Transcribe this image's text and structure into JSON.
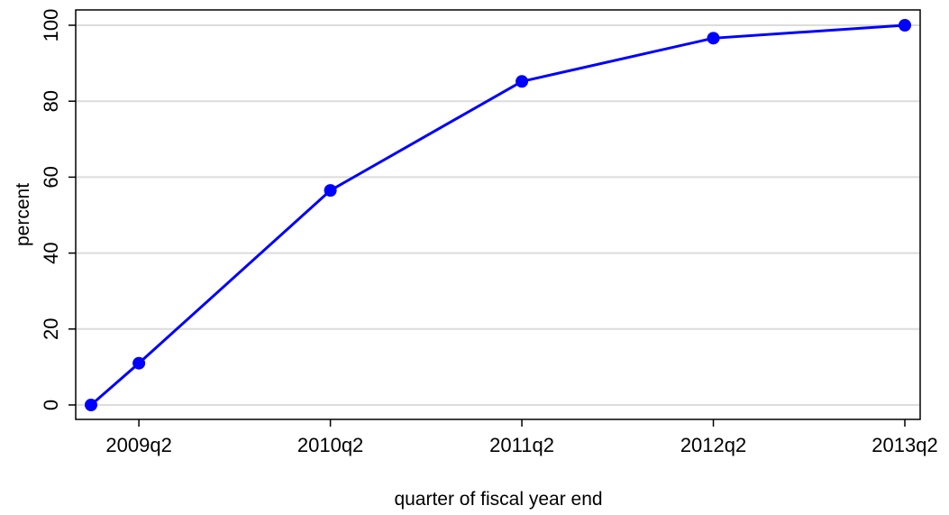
{
  "chart_data": {
    "type": "line",
    "title": "",
    "xlabel": "quarter of fiscal year end",
    "ylabel": "percent",
    "x": [
      "2009q1",
      "2009q2",
      "2010q2",
      "2011q2",
      "2012q2",
      "2013q2"
    ],
    "y": [
      0,
      11,
      56.5,
      85.2,
      96.6,
      100
    ],
    "x_ticks": [
      "2009q2",
      "2010q2",
      "2011q2",
      "2012q2",
      "2013q2"
    ],
    "y_ticks": [
      0,
      20,
      40,
      60,
      80,
      100
    ],
    "ylim": [
      -4,
      104
    ],
    "xlim": [
      "2009q1",
      "2013q2"
    ],
    "grid": "horizontal",
    "series_color": "#0000ff",
    "grid_color": "#dcdcdc"
  }
}
